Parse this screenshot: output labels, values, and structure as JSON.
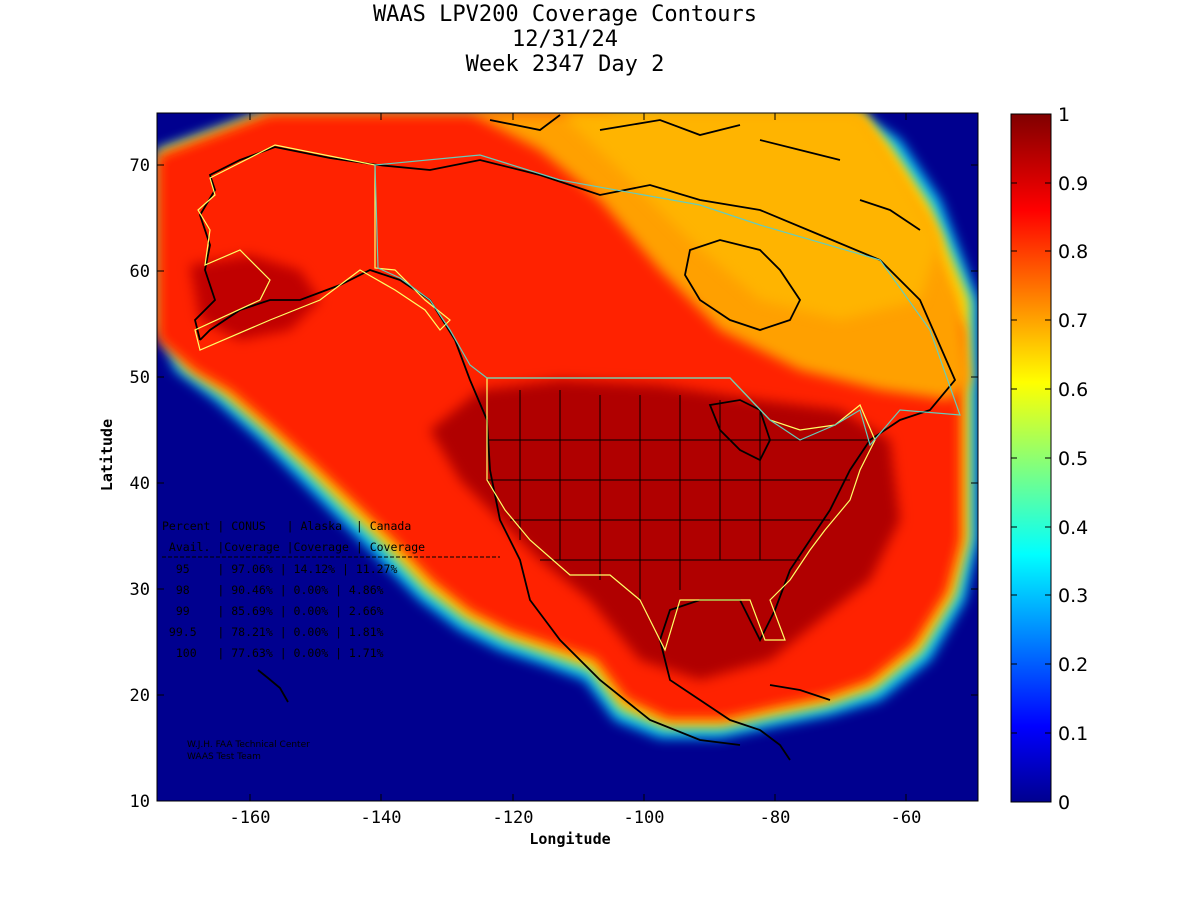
{
  "title": {
    "line1": "WAAS LPV200 Coverage Contours",
    "line2": "12/31/24",
    "line3": "Week 2347 Day 2"
  },
  "axes": {
    "xlabel": "Longitude",
    "ylabel": "Latitude",
    "xticks": [
      "-160",
      "-140",
      "-120",
      "-100",
      "-80",
      "-60"
    ],
    "yticks": [
      "10",
      "20",
      "30",
      "40",
      "50",
      "60",
      "70"
    ],
    "xrange": [
      -175,
      -50
    ],
    "yrange": [
      10,
      75
    ]
  },
  "colorbar": {
    "ticks": [
      "0",
      "0.1",
      "0.2",
      "0.3",
      "0.4",
      "0.5",
      "0.6",
      "0.7",
      "0.8",
      "0.9",
      "1"
    ],
    "colormap": "jet"
  },
  "coverage_table": {
    "header1": "Percent | CONUS   | Alaska  | Canada",
    "header2": " Avail. |Coverage |Coverage | Coverage",
    "rows": [
      "  95    | 97.06% | 14.12% | 11.27%",
      "  98    | 90.46% | 0.00% | 4.86%",
      "  99    | 85.69% | 0.00% | 2.66%",
      " 99.5   | 78.21% | 0.00% | 1.81%",
      "  100   | 77.63% | 0.00% | 1.71%"
    ]
  },
  "credit": {
    "line1": "W.J.H. FAA Technical Center",
    "line2": "WAAS Test Team"
  }
}
